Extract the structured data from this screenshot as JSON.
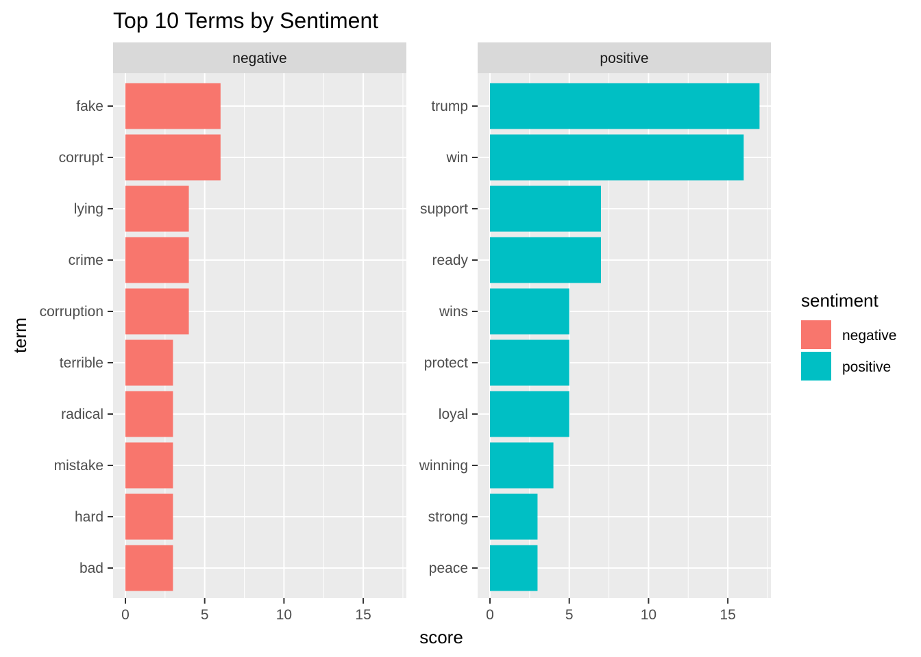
{
  "chart_data": {
    "type": "bar",
    "orientation": "horizontal",
    "title": "Top 10 Terms by Sentiment",
    "xlabel": "score",
    "ylabel": "term",
    "xlim": [
      0,
      17.85
    ],
    "xticks": [
      0,
      5,
      10,
      15
    ],
    "grid": true,
    "legend": {
      "title": "sentiment",
      "placement": "right",
      "entries": [
        {
          "label": "negative",
          "color": "#F8766D"
        },
        {
          "label": "positive",
          "color": "#00BFC4"
        }
      ]
    },
    "panels": [
      {
        "name": "negative",
        "color": "#F8766D",
        "categories": [
          "fake",
          "corrupt",
          "lying",
          "crime",
          "corruption",
          "terrible",
          "radical",
          "mistake",
          "hard",
          "bad"
        ],
        "values": [
          6,
          6,
          4,
          4,
          4,
          3,
          3,
          3,
          3,
          3
        ]
      },
      {
        "name": "positive",
        "color": "#00BFC4",
        "categories": [
          "trump",
          "win",
          "support",
          "ready",
          "wins",
          "protect",
          "loyal",
          "winning",
          "strong",
          "peace"
        ],
        "values": [
          17,
          16,
          7,
          7,
          5,
          5,
          5,
          4,
          3,
          3
        ]
      }
    ]
  },
  "theme": {
    "panel_background": "#EBEBEB",
    "strip_background": "#D9D9D9",
    "grid_color": "#FFFFFF"
  }
}
